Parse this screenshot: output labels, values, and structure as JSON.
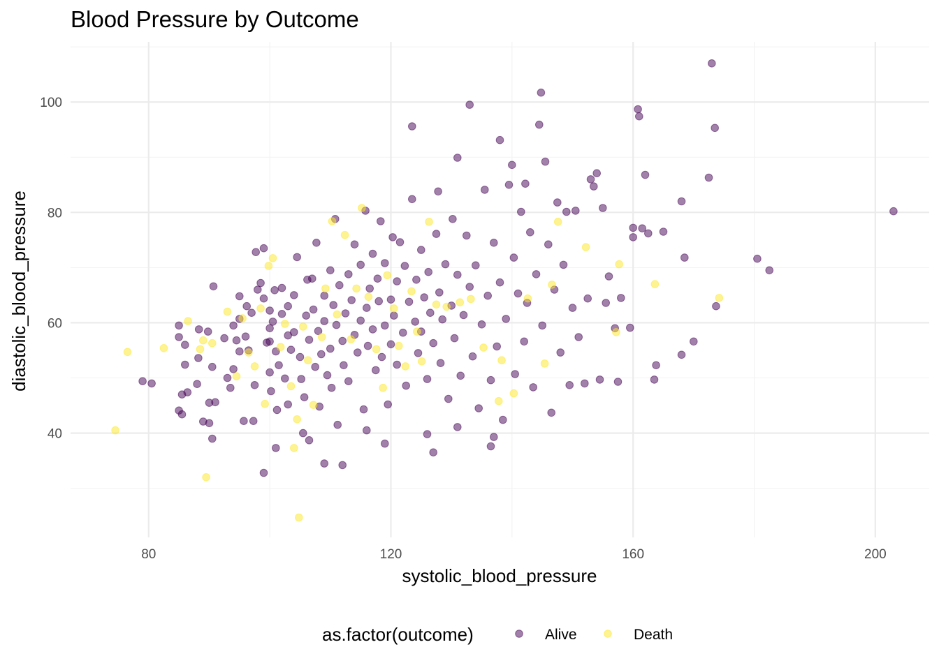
{
  "chart_data": {
    "type": "scatter",
    "title": "Blood Pressure by Outcome",
    "xlabel": "systolic_blood_pressure",
    "ylabel": "diastolic_blood_pressure",
    "xlim": [
      67.1,
      208.9
    ],
    "ylim": [
      21.1,
      110.9
    ],
    "x_ticks": [
      80,
      120,
      160,
      200
    ],
    "y_ticks": [
      40,
      60,
      80,
      100
    ],
    "grid": true,
    "legend": {
      "title": "as.factor(outcome)",
      "position": "bottom",
      "entries": [
        "Alive",
        "Death"
      ]
    },
    "colors": {
      "Alive": "#440154",
      "Death": "#FDE725"
    },
    "point_alpha": 0.5,
    "series": [
      {
        "name": "Alive",
        "points": [
          [
            79,
            49.4
          ],
          [
            80.5,
            49
          ],
          [
            85,
            59.5
          ],
          [
            85,
            57.4
          ],
          [
            85,
            44.1
          ],
          [
            85.5,
            43.4
          ],
          [
            86,
            52.4
          ],
          [
            86,
            56
          ],
          [
            85.5,
            47
          ],
          [
            86.4,
            47.4
          ],
          [
            88,
            48.9
          ],
          [
            88.3,
            58.8
          ],
          [
            88.2,
            53.6
          ],
          [
            89,
            42.1
          ],
          [
            89.8,
            58.4
          ],
          [
            90,
            41.8
          ],
          [
            90,
            45.5
          ],
          [
            90.5,
            39
          ],
          [
            91,
            45.6
          ],
          [
            90.5,
            52
          ],
          [
            90.7,
            66.6
          ],
          [
            92.5,
            57.2
          ],
          [
            93,
            50
          ],
          [
            93.5,
            48.2
          ],
          [
            94,
            59.5
          ],
          [
            94,
            51.6
          ],
          [
            94.5,
            56.8
          ],
          [
            95,
            60.7
          ],
          [
            95,
            64.8
          ],
          [
            95,
            54.8
          ],
          [
            95.7,
            42.2
          ],
          [
            96,
            57.5
          ],
          [
            96.5,
            55
          ],
          [
            96.2,
            63
          ],
          [
            97,
            61.8
          ],
          [
            97.5,
            48.7
          ],
          [
            97.3,
            42.2
          ],
          [
            97.7,
            72.8
          ],
          [
            98,
            66
          ],
          [
            98.5,
            67.2
          ],
          [
            99,
            73.5
          ],
          [
            99,
            64.4
          ],
          [
            99.5,
            56.4
          ],
          [
            100,
            59
          ],
          [
            100,
            56.6
          ],
          [
            100,
            51
          ],
          [
            100,
            62.2
          ],
          [
            100.2,
            47.6
          ],
          [
            100.5,
            60.2
          ],
          [
            100.8,
            65.9
          ],
          [
            101,
            54.8
          ],
          [
            101.2,
            44.2
          ],
          [
            101.5,
            52.3
          ],
          [
            102,
            66.3
          ],
          [
            102,
            61.6
          ],
          [
            102.5,
            49.9
          ],
          [
            103,
            57.7
          ],
          [
            103,
            63
          ],
          [
            103,
            45.2
          ],
          [
            103.5,
            55.1
          ],
          [
            104,
            65
          ],
          [
            104,
            58.3
          ],
          [
            104.5,
            71.9
          ],
          [
            105,
            53.8
          ],
          [
            105.2,
            49.8
          ],
          [
            105.5,
            40
          ],
          [
            105.7,
            46.5
          ],
          [
            106,
            61.3
          ],
          [
            106.2,
            67.8
          ],
          [
            106.5,
            56.9
          ],
          [
            107,
            68
          ],
          [
            107.2,
            62.4
          ],
          [
            107.5,
            52
          ],
          [
            107.7,
            74.5
          ],
          [
            108,
            58.5
          ],
          [
            108.2,
            44.8
          ],
          [
            108.5,
            54.3
          ],
          [
            109,
            64.9
          ],
          [
            109,
            60.3
          ],
          [
            109.5,
            50.5
          ],
          [
            110,
            55.3
          ],
          [
            110,
            69.5
          ],
          [
            110.2,
            48.2
          ],
          [
            110.5,
            63.2
          ],
          [
            110.8,
            78.8
          ],
          [
            111,
            59.6
          ],
          [
            111.2,
            41.5
          ],
          [
            111.5,
            66.8
          ],
          [
            112,
            56.7
          ],
          [
            112.2,
            52.3
          ],
          [
            112.5,
            61.7
          ],
          [
            113,
            68.8
          ],
          [
            113,
            49.4
          ],
          [
            113.5,
            64.1
          ],
          [
            114,
            57.8
          ],
          [
            114,
            74.2
          ],
          [
            114.5,
            54.6
          ],
          [
            115,
            70.5
          ],
          [
            115,
            60.4
          ],
          [
            115.5,
            44.3
          ],
          [
            115.8,
            80.3
          ],
          [
            116,
            62.7
          ],
          [
            116.2,
            55.8
          ],
          [
            116.5,
            66.2
          ],
          [
            117,
            58.8
          ],
          [
            117,
            72.5
          ],
          [
            117.5,
            51.4
          ],
          [
            117.8,
            68
          ],
          [
            118,
            63.9
          ],
          [
            118.3,
            78.4
          ],
          [
            118.5,
            53.8
          ],
          [
            119,
            59.5
          ],
          [
            119,
            70.8
          ],
          [
            119.5,
            45.2
          ],
          [
            120,
            64.2
          ],
          [
            120,
            56.1
          ],
          [
            120.3,
            75.5
          ],
          [
            120.5,
            61.3
          ],
          [
            121,
            67.5
          ],
          [
            121,
            52.4
          ],
          [
            121.5,
            74.6
          ],
          [
            122,
            58.2
          ],
          [
            122.3,
            70.3
          ],
          [
            122.5,
            48.6
          ],
          [
            123,
            63.8
          ],
          [
            123.5,
            82.4
          ],
          [
            123.5,
            95.6
          ],
          [
            124,
            60.2
          ],
          [
            124.2,
            67.8
          ],
          [
            124.5,
            54.5
          ],
          [
            125,
            73.2
          ],
          [
            125,
            58.4
          ],
          [
            125.5,
            64.6
          ],
          [
            126,
            49.8
          ],
          [
            126.2,
            69.2
          ],
          [
            126.5,
            61.8
          ],
          [
            127,
            56.3
          ],
          [
            127.5,
            76.1
          ],
          [
            127.8,
            83.8
          ],
          [
            128,
            65.5
          ],
          [
            128.2,
            52.7
          ],
          [
            128.5,
            60.6
          ],
          [
            129,
            70.6
          ],
          [
            129.5,
            46.2
          ],
          [
            130,
            63.1
          ],
          [
            130.2,
            78.8
          ],
          [
            130.5,
            57.2
          ],
          [
            131,
            89.9
          ],
          [
            131,
            68.7
          ],
          [
            131.5,
            50.4
          ],
          [
            132,
            61.4
          ],
          [
            132.5,
            75.8
          ],
          [
            133,
            99.5
          ],
          [
            133,
            66.5
          ],
          [
            133.5,
            53.9
          ],
          [
            134,
            70.4
          ],
          [
            134.5,
            44.5
          ],
          [
            135,
            59.7
          ],
          [
            135.5,
            84.1
          ],
          [
            136,
            64.9
          ],
          [
            136.5,
            49.6
          ],
          [
            137,
            74.5
          ],
          [
            137.5,
            55.7
          ],
          [
            138,
            93.1
          ],
          [
            138,
            67.3
          ],
          [
            138.5,
            42.4
          ],
          [
            139,
            60.7
          ],
          [
            139.5,
            85
          ],
          [
            140,
            88.6
          ],
          [
            140.3,
            71.8
          ],
          [
            140.5,
            50.7
          ],
          [
            141,
            65.3
          ],
          [
            141.5,
            80.1
          ],
          [
            142,
            56.6
          ],
          [
            142.2,
            85.2
          ],
          [
            142.5,
            63.6
          ],
          [
            143,
            76.4
          ],
          [
            143.5,
            48.3
          ],
          [
            144,
            68.8
          ],
          [
            144.5,
            95.9
          ],
          [
            144.8,
            101.7
          ],
          [
            145,
            59.5
          ],
          [
            145.5,
            89.2
          ],
          [
            146,
            74.2
          ],
          [
            146.5,
            43.7
          ],
          [
            147,
            66
          ],
          [
            147.5,
            81.8
          ],
          [
            148,
            54.6
          ],
          [
            148.5,
            70.5
          ],
          [
            149,
            80.1
          ],
          [
            149.5,
            48.7
          ],
          [
            150,
            62.7
          ],
          [
            150.5,
            80.3
          ],
          [
            151,
            57.4
          ],
          [
            152,
            49
          ],
          [
            152.5,
            64.4
          ],
          [
            153,
            86
          ],
          [
            153.5,
            84.7
          ],
          [
            154,
            87.1
          ],
          [
            154.5,
            49.7
          ],
          [
            155,
            80.8
          ],
          [
            155.5,
            63.6
          ],
          [
            156,
            68.4
          ],
          [
            157,
            59
          ],
          [
            157.5,
            49.3
          ],
          [
            158,
            64.5
          ],
          [
            159.5,
            59.1
          ],
          [
            160,
            77.2
          ],
          [
            160,
            75.5
          ],
          [
            160.8,
            98.7
          ],
          [
            161,
            97.4
          ],
          [
            161.5,
            77.1
          ],
          [
            162,
            86.8
          ],
          [
            162.5,
            76.2
          ],
          [
            163.5,
            49.7
          ],
          [
            163.8,
            52.3
          ],
          [
            165,
            76.5
          ],
          [
            168,
            82
          ],
          [
            168,
            54.2
          ],
          [
            168.5,
            71.8
          ],
          [
            170,
            56.6
          ],
          [
            172.5,
            86.3
          ],
          [
            173,
            107
          ],
          [
            173.5,
            95.3
          ],
          [
            173.7,
            63
          ],
          [
            180.5,
            71.6
          ],
          [
            182.5,
            69.5
          ],
          [
            203,
            80.2
          ],
          [
            109,
            34.5
          ],
          [
            112,
            34.2
          ],
          [
            119,
            38.1
          ],
          [
            127,
            36.5
          ],
          [
            136.5,
            37.6
          ],
          [
            99,
            32.8
          ],
          [
            101,
            37.3
          ],
          [
            106.5,
            38.7
          ],
          [
            116,
            40.5
          ],
          [
            126,
            39.8
          ],
          [
            131,
            41.1
          ],
          [
            137,
            39.3
          ]
        ]
      },
      {
        "name": "Death",
        "points": [
          [
            74.5,
            40.5
          ],
          [
            76.5,
            54.7
          ],
          [
            82.5,
            55.4
          ],
          [
            86.5,
            60.3
          ],
          [
            88.5,
            55.2
          ],
          [
            89,
            56.8
          ],
          [
            89.5,
            32
          ],
          [
            90.5,
            56.3
          ],
          [
            93,
            62
          ],
          [
            94.5,
            50.3
          ],
          [
            95.5,
            60.8
          ],
          [
            96.5,
            54.6
          ],
          [
            97.5,
            52.1
          ],
          [
            98.5,
            62.6
          ],
          [
            99.2,
            45.3
          ],
          [
            99.8,
            70.3
          ],
          [
            100.5,
            71.7
          ],
          [
            101.8,
            55.6
          ],
          [
            102.5,
            59.8
          ],
          [
            103.5,
            48.5
          ],
          [
            104,
            37.3
          ],
          [
            104.5,
            42.5
          ],
          [
            104.8,
            24.7
          ],
          [
            105.5,
            59.3
          ],
          [
            106.3,
            53.2
          ],
          [
            107.2,
            45.1
          ],
          [
            108.6,
            57.4
          ],
          [
            109.2,
            66.2
          ],
          [
            110.3,
            78.4
          ],
          [
            111.1,
            61.5
          ],
          [
            112.4,
            75.9
          ],
          [
            113.4,
            57
          ],
          [
            114.3,
            66.2
          ],
          [
            115.2,
            80.8
          ],
          [
            116.3,
            64.7
          ],
          [
            117.6,
            55.2
          ],
          [
            118.7,
            48.2
          ],
          [
            119.4,
            68.6
          ],
          [
            120.5,
            62.6
          ],
          [
            121.3,
            55.8
          ],
          [
            122.4,
            52.1
          ],
          [
            123.4,
            65.7
          ],
          [
            124.3,
            58.4
          ],
          [
            125.1,
            53
          ],
          [
            126.3,
            78.3
          ],
          [
            127.5,
            63.3
          ],
          [
            129.2,
            62.9
          ],
          [
            131.4,
            63.7
          ],
          [
            133.2,
            64.3
          ],
          [
            135.3,
            55.5
          ],
          [
            137.8,
            45.8
          ],
          [
            138.3,
            53.2
          ],
          [
            140.3,
            47.2
          ],
          [
            142.6,
            64.4
          ],
          [
            145.4,
            52.6
          ],
          [
            146.6,
            66.9
          ],
          [
            147.6,
            78.3
          ],
          [
            152.2,
            73.7
          ],
          [
            157.2,
            58.3
          ],
          [
            157.7,
            70.6
          ],
          [
            163.6,
            67
          ],
          [
            174.2,
            64.5
          ]
        ]
      }
    ]
  }
}
